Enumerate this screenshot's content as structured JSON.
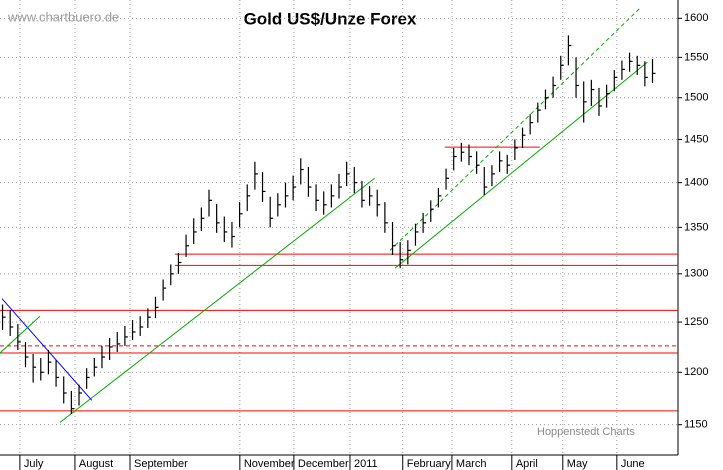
{
  "chart_data": {
    "type": "ohlc",
    "title": "Gold US$/Unze Forex",
    "watermark": "www.chartbuero.de",
    "credit": "Hoppenstedt Charts",
    "log_scale": true,
    "grid": true,
    "bar_color": "#000000",
    "xlim": [
      0,
      266
    ],
    "ylim": [
      1122,
      1624
    ],
    "yticks": [
      1150,
      1200,
      1250,
      1300,
      1350,
      1400,
      1450,
      1500,
      1550,
      1600
    ],
    "xticks": [
      {
        "value": 7.8,
        "label": "July"
      },
      {
        "value": 29.4,
        "label": "August"
      },
      {
        "value": 51,
        "label": "September"
      },
      {
        "value": 94.1,
        "label": "November"
      },
      {
        "value": 115.3,
        "label": "December"
      },
      {
        "value": 137.3,
        "label": "2011"
      },
      {
        "value": 158,
        "label": "February"
      },
      {
        "value": 177.3,
        "label": "March"
      },
      {
        "value": 200.8,
        "label": "April"
      },
      {
        "value": 220.8,
        "label": "May"
      },
      {
        "value": 242,
        "label": "June"
      }
    ],
    "x": [
      1,
      4,
      7,
      10,
      13,
      16,
      19,
      22,
      25,
      28,
      31,
      34,
      37,
      40,
      43,
      46,
      49,
      52,
      55,
      58,
      61,
      64,
      67,
      70,
      73,
      76,
      79,
      82,
      85,
      88,
      91,
      94,
      97,
      100,
      103,
      106,
      109,
      112,
      115,
      118,
      121,
      124,
      127,
      130,
      133,
      136,
      139,
      142,
      145,
      148,
      151,
      154,
      157,
      160,
      163,
      166,
      169,
      172,
      175,
      178,
      181,
      184,
      187,
      190,
      193,
      196,
      199,
      202,
      205,
      208,
      211,
      214,
      217,
      220,
      223,
      226,
      229,
      232,
      235,
      238,
      241,
      244,
      247,
      250,
      253,
      256
    ],
    "close": [
      1255,
      1245,
      1230,
      1215,
      1205,
      1200,
      1210,
      1195,
      1180,
      1165,
      1180,
      1195,
      1205,
      1215,
      1225,
      1228,
      1235,
      1240,
      1245,
      1255,
      1265,
      1285,
      1300,
      1312,
      1330,
      1345,
      1360,
      1380,
      1355,
      1345,
      1340,
      1365,
      1385,
      1410,
      1390,
      1360,
      1375,
      1385,
      1395,
      1415,
      1395,
      1380,
      1375,
      1385,
      1395,
      1410,
      1400,
      1380,
      1385,
      1375,
      1355,
      1330,
      1315,
      1325,
      1345,
      1355,
      1370,
      1385,
      1405,
      1430,
      1435,
      1430,
      1420,
      1395,
      1410,
      1425,
      1420,
      1440,
      1455,
      1470,
      1485,
      1500,
      1515,
      1540,
      1565,
      1515,
      1495,
      1510,
      1490,
      1505,
      1525,
      1535,
      1545,
      1540,
      1525,
      1530
    ],
    "high": [
      1268,
      1262,
      1248,
      1230,
      1218,
      1214,
      1222,
      1212,
      1196,
      1182,
      1188,
      1204,
      1214,
      1226,
      1234,
      1240,
      1246,
      1252,
      1256,
      1264,
      1276,
      1294,
      1310,
      1322,
      1342,
      1360,
      1372,
      1392,
      1376,
      1362,
      1356,
      1378,
      1398,
      1424,
      1412,
      1384,
      1388,
      1400,
      1408,
      1428,
      1418,
      1398,
      1390,
      1398,
      1410,
      1424,
      1418,
      1402,
      1396,
      1392,
      1378,
      1356,
      1334,
      1336,
      1354,
      1366,
      1380,
      1394,
      1416,
      1440,
      1446,
      1444,
      1436,
      1418,
      1420,
      1436,
      1432,
      1450,
      1464,
      1480,
      1494,
      1510,
      1526,
      1552,
      1578,
      1550,
      1520,
      1522,
      1512,
      1516,
      1534,
      1546,
      1556,
      1552,
      1545,
      1548
    ],
    "low": [
      1242,
      1236,
      1222,
      1205,
      1190,
      1192,
      1198,
      1186,
      1170,
      1160,
      1168,
      1184,
      1196,
      1204,
      1212,
      1220,
      1226,
      1232,
      1236,
      1244,
      1254,
      1272,
      1288,
      1300,
      1318,
      1332,
      1346,
      1362,
      1344,
      1334,
      1328,
      1350,
      1368,
      1392,
      1378,
      1350,
      1362,
      1372,
      1380,
      1398,
      1384,
      1368,
      1364,
      1372,
      1382,
      1396,
      1388,
      1372,
      1374,
      1362,
      1344,
      1320,
      1306,
      1310,
      1330,
      1344,
      1356,
      1372,
      1392,
      1414,
      1424,
      1420,
      1410,
      1386,
      1396,
      1412,
      1410,
      1426,
      1440,
      1456,
      1470,
      1486,
      1500,
      1522,
      1540,
      1500,
      1470,
      1490,
      1478,
      1488,
      1508,
      1522,
      1532,
      1528,
      1514,
      1518
    ],
    "lines": [
      {
        "color": "#ff0000",
        "dashed": false,
        "x": [
          68.6,
          266
        ],
        "y": [
          1321,
          1321
        ]
      },
      {
        "color": "#ff0000",
        "dashed": false,
        "x": [
          68.6,
          266
        ],
        "y": [
          1309,
          1309
        ]
      },
      {
        "color": "#ff0000",
        "dashed": false,
        "x": [
          0,
          266
        ],
        "y": [
          1262,
          1262
        ]
      },
      {
        "color": "#ff0000",
        "dashed": true,
        "x": [
          0,
          266
        ],
        "y": [
          1226,
          1226
        ]
      },
      {
        "color": "#ff0000",
        "dashed": false,
        "x": [
          0,
          266
        ],
        "y": [
          1219,
          1219
        ]
      },
      {
        "color": "#ff0000",
        "dashed": false,
        "x": [
          0,
          266
        ],
        "y": [
          1163,
          1163
        ]
      },
      {
        "color": "#ff0000",
        "dashed": false,
        "x": [
          174.5,
          211.8
        ],
        "y": [
          1441,
          1441
        ]
      },
      {
        "color": "#00aa00",
        "dashed": false,
        "x": [
          23.5,
          147
        ],
        "y": [
          1152,
          1405
        ]
      },
      {
        "color": "#0000ff",
        "dashed": false,
        "x": [
          0.8,
          36
        ],
        "y": [
          1274,
          1173
        ]
      },
      {
        "color": "#00aa00",
        "dashed": false,
        "x": [
          0,
          15.7
        ],
        "y": [
          1219,
          1256
        ]
      },
      {
        "color": "#00aa00",
        "dashed": false,
        "x": [
          155,
          254
        ],
        "y": [
          1306,
          1544
        ]
      },
      {
        "color": "#00aa00",
        "dashed": true,
        "x": [
          153,
          251
        ],
        "y": [
          1325,
          1613
        ]
      }
    ]
  }
}
